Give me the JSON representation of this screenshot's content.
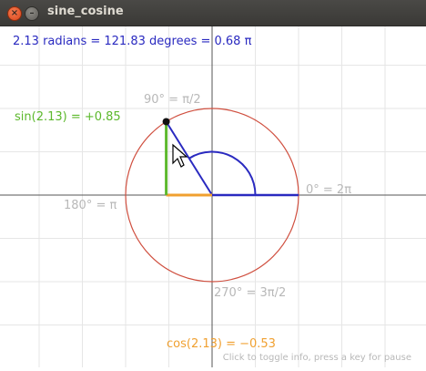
{
  "window": {
    "title": "sine_cosine"
  },
  "readout": {
    "angle_text": "2.13 radians = 121.83 degrees = 0.68 π",
    "sin_text": "sin(2.13) = +0.85",
    "cos_text": "cos(2.13) = −0.53",
    "hint_text": "Click to toggle info, press a key for pause"
  },
  "labels": {
    "deg90": "90° = π/2",
    "deg0": "0° = 2π",
    "deg180": "180° = π",
    "deg270": "270° = 3π/2"
  },
  "state": {
    "angle_radians": 2.13,
    "sin_value": 0.85,
    "cos_value": -0.53
  },
  "colors": {
    "blue": "#2a2ac0",
    "green": "#5cb82c",
    "orange": "#f0a030",
    "red_circle": "#d05040",
    "grid": "#e6e6e6",
    "axis": "#555555",
    "label_gray": "#b8b8b8"
  }
}
